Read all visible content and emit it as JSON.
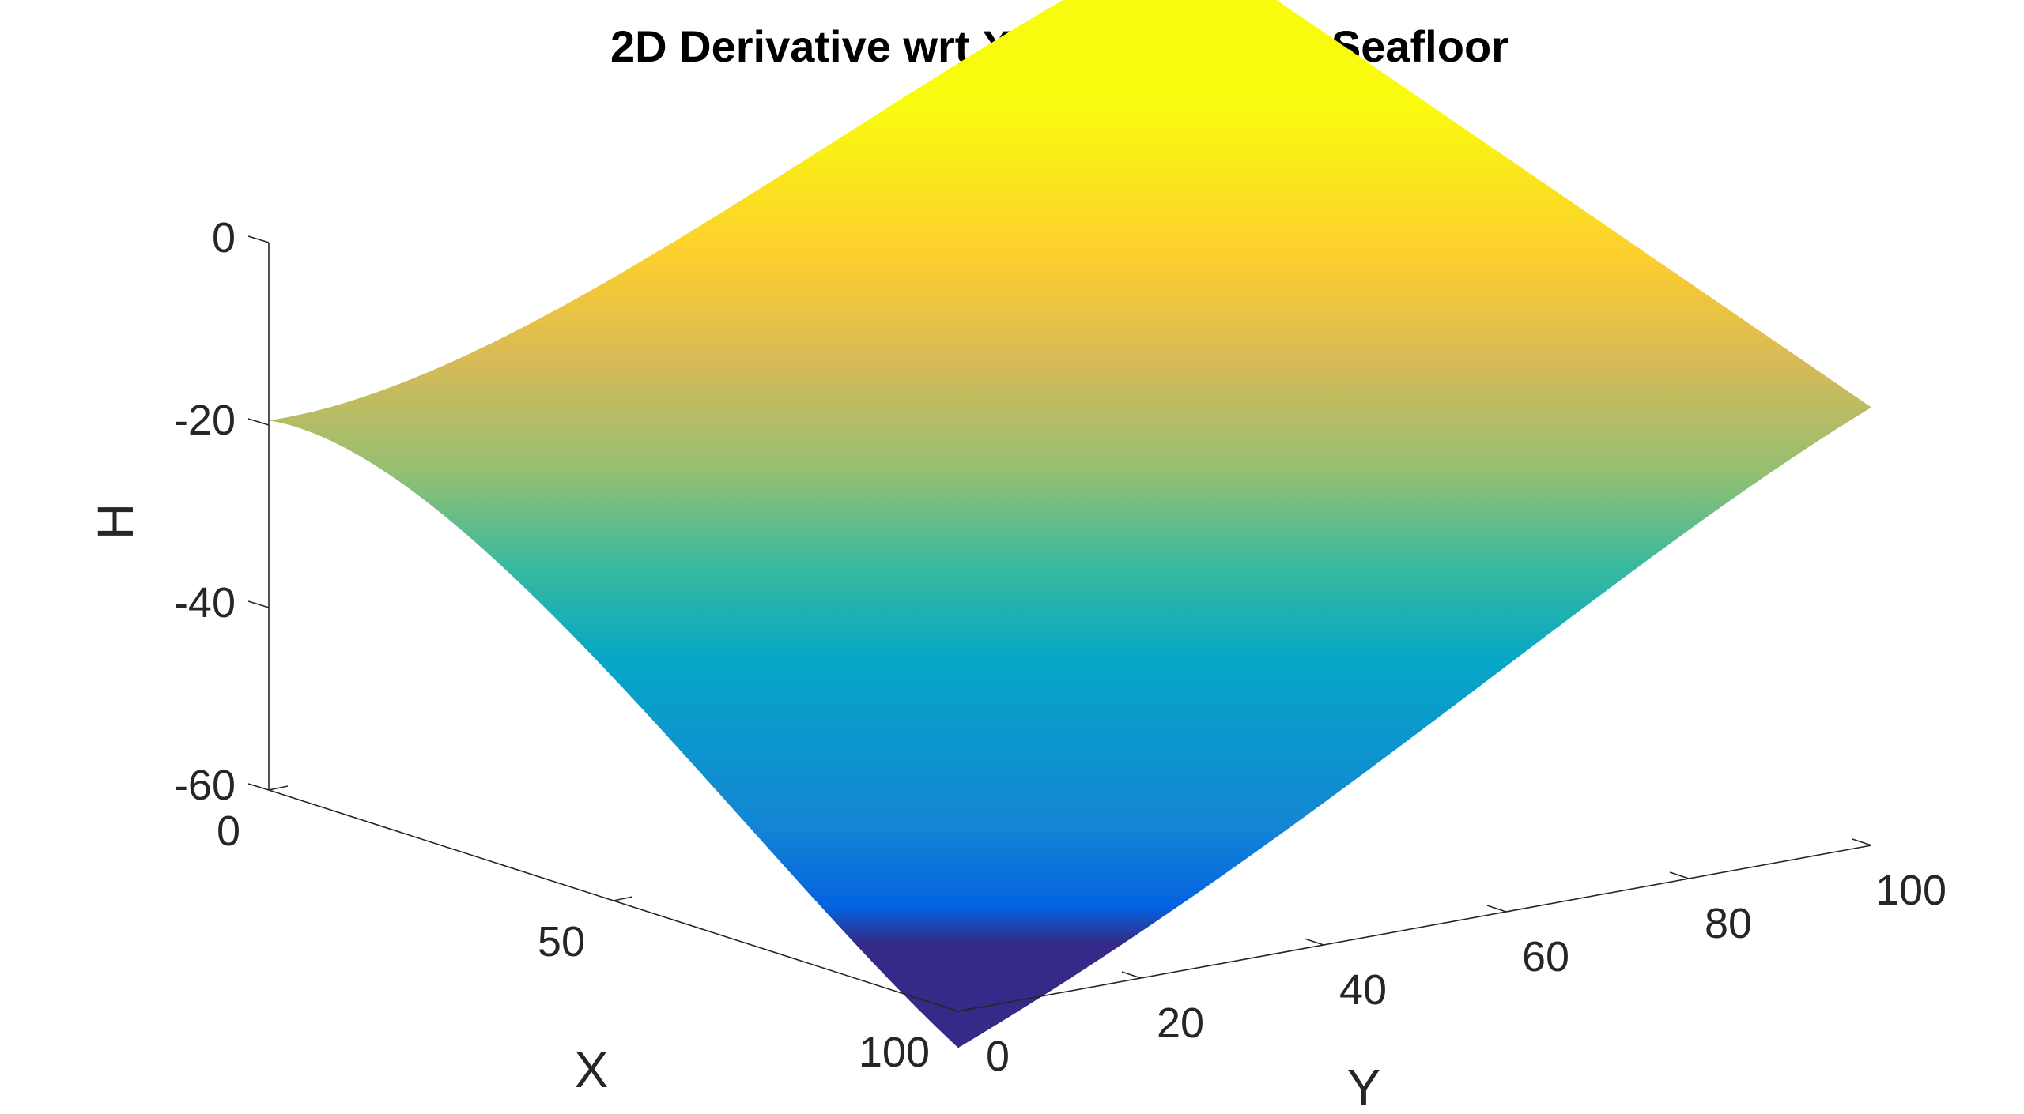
{
  "chart_data": {
    "type": "surface",
    "title": "2D Derivative wrt X Surface of the Seafloor",
    "xlabel": "X",
    "ylabel": "Y",
    "zlabel": "H",
    "xlim": [
      0,
      100
    ],
    "ylim": [
      0,
      100
    ],
    "zlim": [
      -60,
      0
    ],
    "x_ticks": [
      {
        "value": 0,
        "label": "0"
      },
      {
        "value": 50,
        "label": "50"
      },
      {
        "value": 100,
        "label": "100"
      }
    ],
    "y_ticks": [
      {
        "value": 0,
        "label": "0"
      },
      {
        "value": 20,
        "label": "20"
      },
      {
        "value": 40,
        "label": "40"
      },
      {
        "value": 60,
        "label": "60"
      },
      {
        "value": 80,
        "label": "80"
      },
      {
        "value": 100,
        "label": "100"
      }
    ],
    "z_ticks": [
      {
        "value": 0,
        "label": "0"
      },
      {
        "value": -20,
        "label": "-20"
      },
      {
        "value": -40,
        "label": "-40"
      },
      {
        "value": -60,
        "label": "-60"
      }
    ],
    "corner_values": [
      {
        "x": 0,
        "y": 0,
        "z": -19.5
      },
      {
        "x": 0,
        "y": 100,
        "z": 15.5
      },
      {
        "x": 100,
        "y": 100,
        "z": -12
      },
      {
        "x": 100,
        "y": 0,
        "z": -64
      }
    ],
    "colormap": "parula",
    "colormap_stops": [
      "#352a87",
      "#0363e1",
      "#1485d4",
      "#06a7c6",
      "#38b99e",
      "#92bf73",
      "#d9ba56",
      "#fcce2e",
      "#f9fb0e"
    ],
    "grid": false,
    "view": "3d-perspective"
  }
}
